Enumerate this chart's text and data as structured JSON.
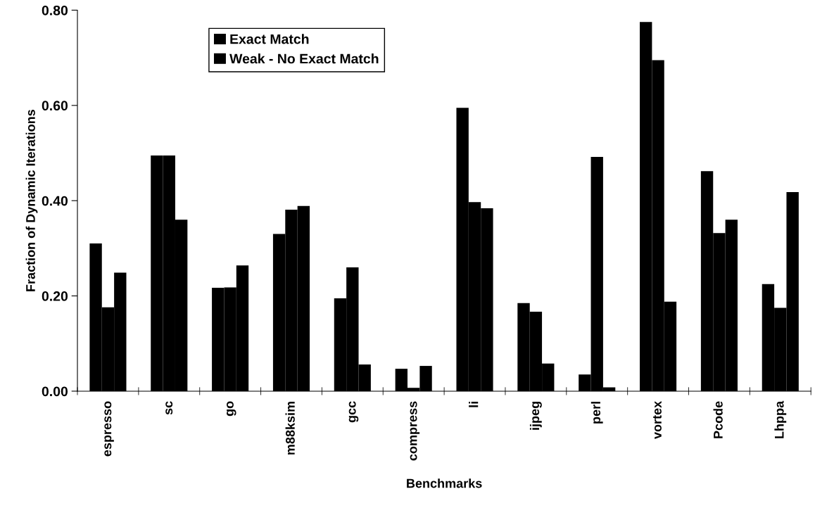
{
  "chart_data": {
    "type": "bar",
    "xlabel": "Benchmarks",
    "ylabel": "Fraction of Dynamic Iterations",
    "categories": [
      "espresso",
      "sc",
      "go",
      "m88ksim",
      "gcc",
      "compress",
      "li",
      "ijpeg",
      "perl",
      "vortex",
      "Pcode",
      "Lhppa"
    ],
    "series": [
      {
        "name": "Exact Match",
        "color": "#000000",
        "values": [
          0.31,
          0.495,
          0.217,
          0.33,
          0.195,
          0.047,
          0.595,
          0.185,
          0.035,
          0.775,
          0.462,
          0.225
        ]
      },
      {
        "name": "Weak - No Exact Match",
        "color": "#000000",
        "values": [
          0.176,
          0.495,
          0.218,
          0.381,
          0.26,
          0.007,
          0.397,
          0.167,
          0.492,
          0.695,
          0.332,
          0.175
        ]
      },
      {
        "color": "#000000",
        "values": [
          0.249,
          0.36,
          0.264,
          0.389,
          0.056,
          0.053,
          0.384,
          0.058,
          0.008,
          0.188,
          0.36,
          0.418
        ]
      }
    ],
    "ylim": [
      0,
      0.8
    ],
    "yticks": [
      {
        "value": 0,
        "label": "0.00"
      },
      {
        "value": 0.2,
        "label": "0.20"
      },
      {
        "value": 0.4,
        "label": "0.40"
      },
      {
        "value": 0.6,
        "label": "0.60"
      },
      {
        "value": 0.8,
        "label": "0.80"
      }
    ],
    "grid": false,
    "legend": "top left"
  }
}
